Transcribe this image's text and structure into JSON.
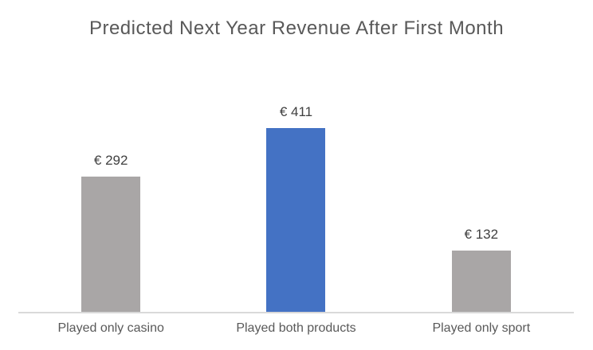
{
  "chart_data": {
    "type": "bar",
    "title": "Predicted Next Year Revenue After First Month",
    "categories": [
      "Played only casino",
      "Played both products",
      "Played only sport"
    ],
    "values": [
      292,
      411,
      132
    ],
    "value_labels": [
      "€ 292",
      "€ 411",
      "€ 132"
    ],
    "bar_colors": [
      "#a9a6a6",
      "#4472c4",
      "#a9a6a6"
    ],
    "xlabel": "",
    "ylabel": "",
    "ylim": [
      0,
      450
    ],
    "grid": false,
    "legend": false,
    "colors": {
      "title": "#595959",
      "value_label": "#404040",
      "tick_label": "#595959",
      "axis_line": "#d9d9d9",
      "background": "#ffffff"
    }
  }
}
